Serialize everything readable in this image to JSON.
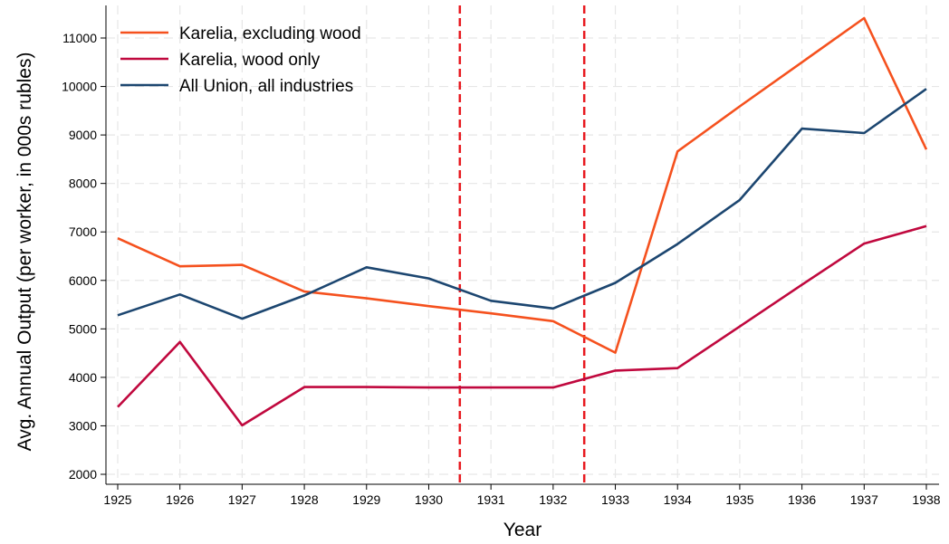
{
  "chart_data": {
    "type": "line",
    "title": "",
    "xlabel": "Year",
    "ylabel": "Avg. Annual Output (per worker, in 000s rubles)",
    "x": [
      1925,
      1926,
      1927,
      1928,
      1929,
      1930,
      1931,
      1932,
      1933,
      1934,
      1935,
      1936,
      1937,
      1938
    ],
    "x_ticks": [
      "1925",
      "1926",
      "1927",
      "1928",
      "1929",
      "1930",
      "1931",
      "1932",
      "1933",
      "1934",
      "1935",
      "1936",
      "1937",
      "1938"
    ],
    "y_ticks": [
      "2000",
      "3000",
      "4000",
      "5000",
      "6000",
      "7000",
      "8000",
      "9000",
      "10000",
      "11000"
    ],
    "xlim": [
      1925,
      1938
    ],
    "ylim": [
      1800,
      11700
    ],
    "grid": true,
    "legend_position": "top-left",
    "vertical_lines": [
      {
        "x": 1930.5,
        "color": "#e8191f",
        "style": "dashed"
      },
      {
        "x": 1932.5,
        "color": "#e8191f",
        "style": "dashed"
      }
    ],
    "series": [
      {
        "name": "Karelia, excluding wood",
        "color": "#f5511e",
        "values": [
          6870,
          6290,
          6320,
          5770,
          5630,
          5470,
          5320,
          5160,
          4510,
          8660,
          9590,
          10500,
          11410,
          8700
        ]
      },
      {
        "name": "Karelia, wood only",
        "color": "#c0083e",
        "values": [
          3390,
          4730,
          3010,
          3800,
          3800,
          3790,
          3790,
          3790,
          4140,
          4190,
          5050,
          5910,
          6760,
          7120
        ]
      },
      {
        "name": "All Union, all industries",
        "color": "#1c4670",
        "values": [
          5280,
          5710,
          5210,
          5690,
          6270,
          6040,
          5580,
          5420,
          5950,
          6750,
          7660,
          9130,
          9040,
          9950
        ]
      }
    ]
  }
}
